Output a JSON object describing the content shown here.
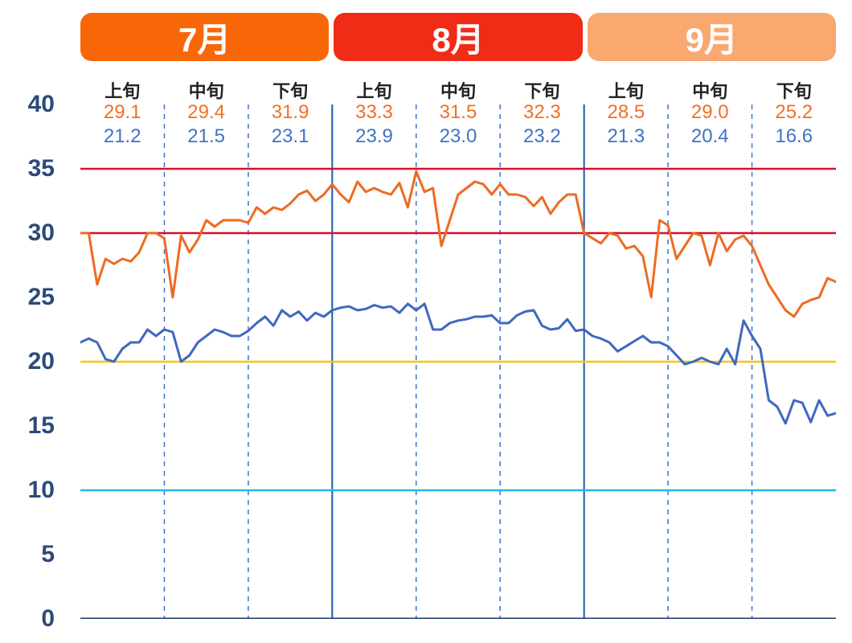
{
  "chart": {
    "type": "line",
    "ylim": [
      0,
      40
    ],
    "yticks": [
      0,
      5,
      10,
      15,
      20,
      25,
      30,
      35,
      40
    ],
    "ytick_color": "#2b4a7a",
    "tick_fontsize": 30,
    "background": "#ffffff",
    "months": [
      {
        "label": "7月",
        "bg": "#f76707"
      },
      {
        "label": "8月",
        "bg": "#f02c16"
      },
      {
        "label": "9月",
        "bg": "#f9a870"
      }
    ],
    "month_tab_text_color": "#ffffff",
    "periods": [
      "上旬",
      "中旬",
      "下旬",
      "上旬",
      "中旬",
      "下旬",
      "上旬",
      "中旬",
      "下旬"
    ],
    "period_label_color": "#222222",
    "period_fontsize": 22,
    "high_values": [
      "29.1",
      "29.4",
      "31.9",
      "33.3",
      "31.5",
      "32.3",
      "28.5",
      "29.0",
      "25.2"
    ],
    "low_values": [
      "21.2",
      "21.5",
      "23.1",
      "23.9",
      "23.0",
      "23.2",
      "21.3",
      "20.4",
      "16.6"
    ],
    "high_color": "#f07025",
    "low_color": "#3f73c4",
    "value_fontsize": 24,
    "reference_lines": [
      {
        "y": 35,
        "color": "#d6102a",
        "width": 2.5
      },
      {
        "y": 30,
        "color": "#d6102a",
        "width": 2.5
      },
      {
        "y": 20,
        "color": "#f7c60a",
        "width": 2.5
      },
      {
        "y": 10,
        "color": "#1fb8e8",
        "width": 2.5
      },
      {
        "y": 0,
        "color": "#1d3766",
        "width": 3
      }
    ],
    "month_divider_color": "#1d5aa8",
    "month_divider_width": 2,
    "period_dash_color": "#3f73c4",
    "period_dash_pattern": "6,6",
    "high_series": {
      "color": "#ee6a24",
      "width": 3,
      "data": [
        30,
        30,
        26,
        28,
        27.6,
        28,
        27.8,
        28.5,
        30,
        30,
        29.6,
        25,
        29.8,
        28.5,
        29.5,
        31,
        30.5,
        31,
        31,
        31,
        30.8,
        32,
        31.5,
        32,
        31.8,
        32.3,
        33,
        33.3,
        32.5,
        33,
        33.8,
        33,
        32.4,
        34,
        33.2,
        33.5,
        33.2,
        33,
        33.9,
        32,
        34.8,
        33.2,
        33.5,
        29,
        31,
        33,
        33.5,
        34,
        33.8,
        33,
        33.8,
        33,
        33,
        32.8,
        32.1,
        32.8,
        31.5,
        32.4,
        33,
        33,
        30,
        29.6,
        29.2,
        30,
        29.8,
        28.8,
        29,
        28.2,
        25,
        31,
        30.6,
        28,
        29,
        30,
        29.8,
        27.5,
        30,
        28.6,
        29.5,
        29.8,
        29,
        27.5,
        26,
        25,
        24,
        23.5,
        24.5,
        24.8,
        25,
        26.5,
        26.2
      ]
    },
    "low_series": {
      "color": "#3f68c0",
      "width": 3,
      "data": [
        21.5,
        21.8,
        21.5,
        20.2,
        20,
        21,
        21.5,
        21.5,
        22.5,
        22,
        22.5,
        22.3,
        20,
        20.5,
        21.5,
        22,
        22.5,
        22.3,
        22,
        22,
        22.4,
        23,
        23.5,
        22.8,
        24,
        23.5,
        23.9,
        23.2,
        23.8,
        23.5,
        24,
        24.2,
        24.3,
        24,
        24.1,
        24.4,
        24.2,
        24.3,
        23.8,
        24.5,
        24,
        24.5,
        22.5,
        22.5,
        23,
        23.2,
        23.3,
        23.5,
        23.5,
        23.6,
        23,
        23,
        23.6,
        23.9,
        24,
        22.8,
        22.5,
        22.6,
        23.3,
        22.4,
        22.5,
        22,
        21.8,
        21.5,
        20.8,
        21.2,
        21.6,
        22,
        21.5,
        21.5,
        21.2,
        20.5,
        19.8,
        20,
        20.3,
        20,
        19.8,
        21,
        19.8,
        23.2,
        22,
        21,
        17,
        16.5,
        15.2,
        17,
        16.8,
        15.3,
        17,
        15.8,
        16
      ]
    },
    "n_points": 91
  }
}
